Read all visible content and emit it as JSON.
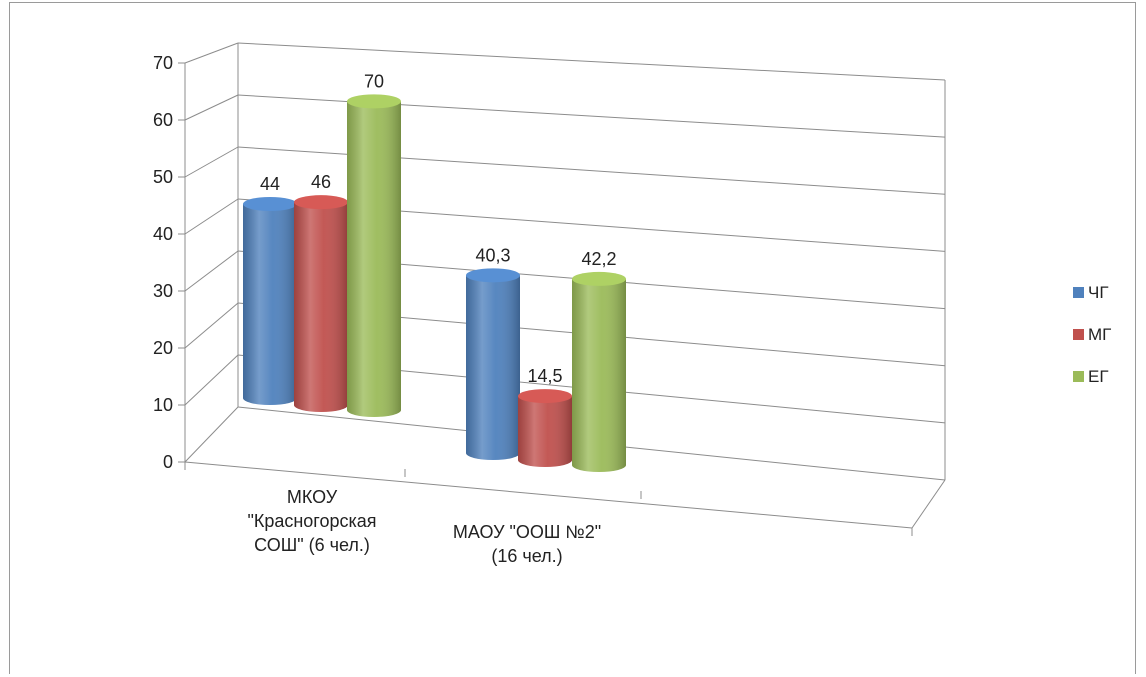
{
  "chart_data": {
    "type": "bar",
    "style": "3d-cylinder",
    "categories": [
      [
        "МКОУ",
        "\"Красногорская",
        "СОШ\" (6 чел.)"
      ],
      [
        "МАОУ \"ООШ №2\"",
        "(16 чел.)"
      ]
    ],
    "series": [
      {
        "name": "ЧГ",
        "color": "#4f81bd",
        "values": [
          44,
          40.3
        ],
        "labels": [
          "44",
          "40,3"
        ]
      },
      {
        "name": "МГ",
        "color": "#c0504d",
        "values": [
          46,
          14.5
        ],
        "labels": [
          "46",
          "14,5"
        ]
      },
      {
        "name": "ЕГ",
        "color": "#9bbb59",
        "values": [
          70,
          42.2
        ],
        "labels": [
          "70",
          "42,2"
        ]
      }
    ],
    "y_ticks": [
      "0",
      "10",
      "20",
      "30",
      "40",
      "50",
      "60",
      "70"
    ],
    "ylim": [
      0,
      70
    ],
    "grid": true,
    "legend": "right"
  }
}
